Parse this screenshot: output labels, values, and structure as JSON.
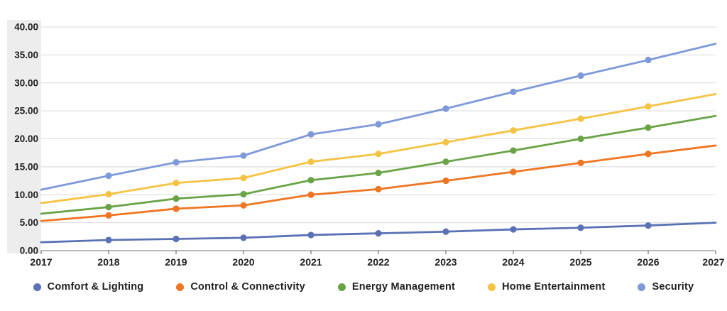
{
  "chart_data": {
    "type": "line",
    "title": "",
    "xlabel": "",
    "ylabel": "",
    "categories": [
      "2017",
      "2018",
      "2019",
      "2020",
      "2021",
      "2022",
      "2023",
      "2024",
      "2025",
      "2026",
      "2027"
    ],
    "series": [
      {
        "name": "Comfort & Lighting",
        "color": "#5a72b5",
        "values": [
          1.5,
          1.9,
          2.1,
          2.3,
          2.8,
          3.1,
          3.4,
          3.8,
          4.1,
          4.5,
          5.0
        ]
      },
      {
        "name": "Control & Connectivity",
        "color": "#ee7522",
        "values": [
          5.3,
          6.3,
          7.5,
          8.1,
          10.0,
          11.0,
          12.5,
          14.1,
          15.7,
          17.3,
          18.8
        ]
      },
      {
        "name": "Energy Management",
        "color": "#68a346",
        "values": [
          6.6,
          7.8,
          9.3,
          10.1,
          12.6,
          13.9,
          15.9,
          17.9,
          20.0,
          22.0,
          24.1
        ]
      },
      {
        "name": "Home Entertainment",
        "color": "#f5c343",
        "values": [
          8.5,
          10.1,
          12.1,
          13.0,
          15.9,
          17.3,
          19.4,
          21.5,
          23.6,
          25.8,
          28.0
        ]
      },
      {
        "name": "Security",
        "color": "#7e99d9",
        "values": [
          10.9,
          13.4,
          15.8,
          17.0,
          20.8,
          22.6,
          25.4,
          28.4,
          31.3,
          34.1,
          37.0
        ]
      }
    ],
    "ylim": [
      0,
      40
    ],
    "y_tick_step": 5,
    "y_tick_labels": [
      "0.00",
      "5.00",
      "10.00",
      "15.00",
      "20.00",
      "25.00",
      "30.00",
      "35.00",
      "40.00"
    ],
    "grid": true,
    "legend_position": "bottom",
    "markers": "circle-on-interior-points",
    "colors": {
      "gridline": "#d9d9d9",
      "axis_line": "#8c8c8c",
      "tick_mark": "#6f6f6f",
      "tick_text": "#1f1f1f",
      "y_label_band": "#ededed",
      "background": "#ffffff"
    }
  }
}
